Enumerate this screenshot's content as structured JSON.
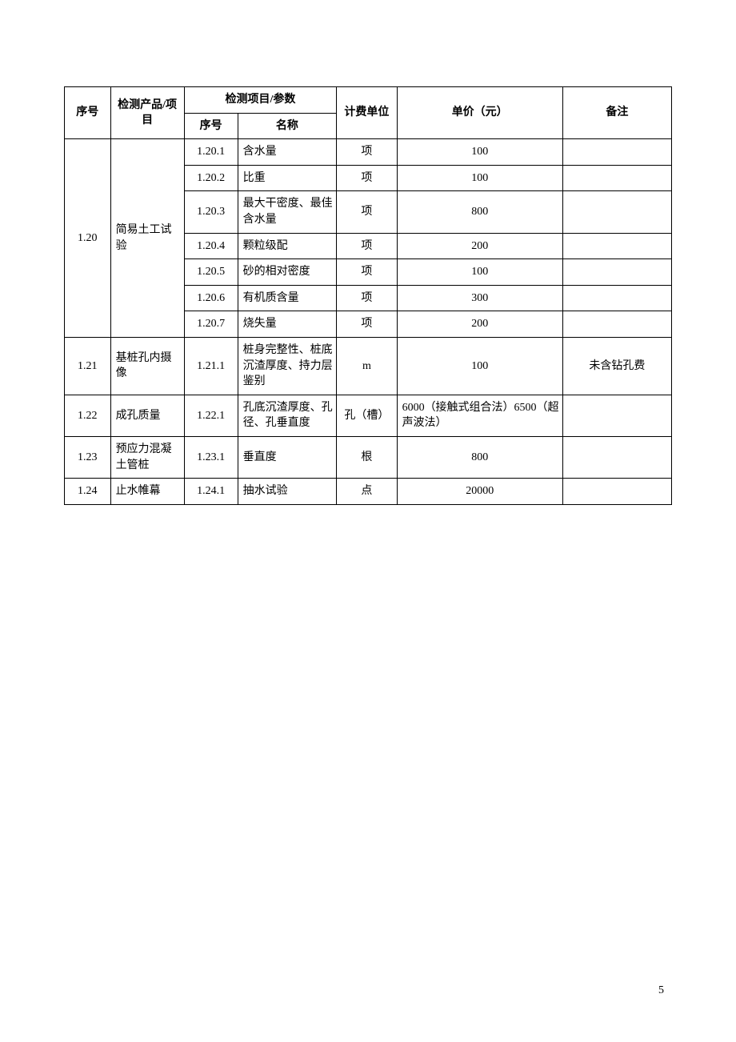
{
  "page_number": "5",
  "headers": {
    "idx": "序号",
    "product": "检测产品/项目",
    "param_group": "检测项目/参数",
    "param_idx": "序号",
    "param_name": "名称",
    "unit": "计费单位",
    "price": "单价（元）",
    "remark": "备注"
  },
  "groups": [
    {
      "idx": "1.20",
      "product": "简易土工试验",
      "rows": [
        {
          "sub_idx": "1.20.1",
          "name": "含水量",
          "unit": "项",
          "price": "100",
          "remark": ""
        },
        {
          "sub_idx": "1.20.2",
          "name": "比重",
          "unit": "项",
          "price": "100",
          "remark": ""
        },
        {
          "sub_idx": "1.20.3",
          "name": "最大干密度、最佳含水量",
          "unit": "项",
          "price": "800",
          "remark": ""
        },
        {
          "sub_idx": "1.20.4",
          "name": "颗粒级配",
          "unit": "项",
          "price": "200",
          "remark": ""
        },
        {
          "sub_idx": "1.20.5",
          "name": "砂的相对密度",
          "unit": "项",
          "price": "100",
          "remark": ""
        },
        {
          "sub_idx": "1.20.6",
          "name": "有机质含量",
          "unit": "项",
          "price": "300",
          "remark": ""
        },
        {
          "sub_idx": "1.20.7",
          "name": "烧失量",
          "unit": "项",
          "price": "200",
          "remark": ""
        }
      ]
    },
    {
      "idx": "1.21",
      "product": "基桩孔内摄像",
      "rows": [
        {
          "sub_idx": "1.21.1",
          "name": "桩身完整性、桩底沉渣厚度、持力层鉴别",
          "unit": "m",
          "price": "100",
          "remark": "未含钻孔费"
        }
      ]
    },
    {
      "idx": "1.22",
      "product": "成孔质量",
      "rows": [
        {
          "sub_idx": "1.22.1",
          "name": "孔底沉渣厚度、孔径、孔垂直度",
          "unit": "孔（槽）",
          "price": "6000（接触式组合法）6500（超声波法）",
          "remark": ""
        }
      ]
    },
    {
      "idx": "1.23",
      "product": "预应力混凝土管桩",
      "rows": [
        {
          "sub_idx": "1.23.1",
          "name": "垂直度",
          "unit": "根",
          "price": "800",
          "remark": ""
        }
      ]
    },
    {
      "idx": "1.24",
      "product": "止水帷幕",
      "rows": [
        {
          "sub_idx": "1.24.1",
          "name": "抽水试验",
          "unit": "点",
          "price": "20000",
          "remark": ""
        }
      ]
    }
  ],
  "table_style": {
    "border_color": "#000000",
    "font_size": 14,
    "header_font_weight": "bold",
    "background": "#ffffff"
  }
}
